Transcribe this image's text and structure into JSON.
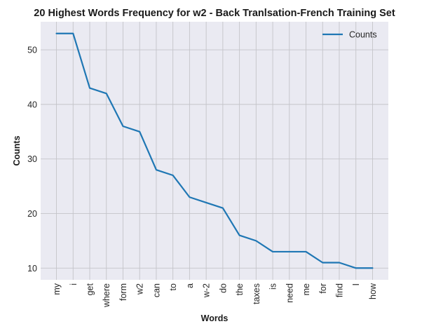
{
  "chart_data": {
    "type": "line",
    "title": "20 Highest Words Frequency for w2 - Back Tranlsation-French Training Set",
    "xlabel": "Words",
    "ylabel": "Counts",
    "categories": [
      "my",
      "i",
      "get",
      "where",
      "form",
      "w2",
      "can",
      "to",
      "a",
      "w-2",
      "do",
      "the",
      "taxes",
      "is",
      "need",
      "me",
      "for",
      "find",
      "I",
      "how"
    ],
    "series": [
      {
        "name": "Counts",
        "values": [
          53,
          53,
          43,
          42,
          36,
          35,
          28,
          27,
          23,
          22,
          21,
          16,
          15,
          13,
          13,
          13,
          11,
          11,
          10,
          10
        ]
      }
    ],
    "ylim": [
      7.85,
      55.15
    ],
    "yticks": [
      10,
      20,
      30,
      40,
      50
    ],
    "grid": true,
    "legend_position": "top-right",
    "colors": {
      "line": "#1f77b4",
      "background": "#eaeaf2",
      "grid": "#c4c4c9"
    }
  }
}
